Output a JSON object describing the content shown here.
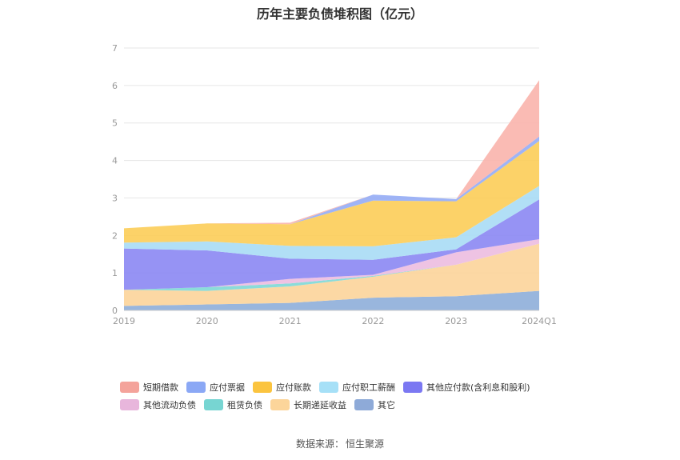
{
  "chart_data": {
    "type": "area",
    "stacked": true,
    "title": "历年主要负债堆积图（亿元）",
    "categories": [
      "2019",
      "2020",
      "2021",
      "2022",
      "2023",
      "2024Q1"
    ],
    "ylim": [
      0,
      7
    ],
    "yticks": [
      "0",
      "1",
      "2",
      "3",
      "4",
      "5",
      "6",
      "7"
    ],
    "grid": true,
    "legend_position": "bottom",
    "series": [
      {
        "name": "其它",
        "color": "#8eaed9",
        "values": [
          0.12,
          0.16,
          0.2,
          0.34,
          0.38,
          0.52
        ]
      },
      {
        "name": "长期递延收益",
        "color": "#fcd49a",
        "values": [
          0.43,
          0.36,
          0.44,
          0.56,
          0.84,
          1.26
        ]
      },
      {
        "name": "租赁负债",
        "color": "#7ed8d6",
        "values": [
          0.0,
          0.1,
          0.08,
          0.02,
          0.0,
          0.0
        ]
      },
      {
        "name": "其他流动负债",
        "color": "#ecbde0",
        "values": [
          0.0,
          0.0,
          0.12,
          0.03,
          0.33,
          0.12
        ]
      },
      {
        "name": "其他应付款(含利息和股利)",
        "color": "#8b87f3",
        "values": [
          1.1,
          0.98,
          0.54,
          0.4,
          0.08,
          1.06
        ]
      },
      {
        "name": "应付职工薪酬",
        "color": "#a8dcf5",
        "values": [
          0.16,
          0.24,
          0.34,
          0.36,
          0.32,
          0.36
        ]
      },
      {
        "name": "应付账款",
        "color": "#fccd58",
        "values": [
          0.38,
          0.48,
          0.58,
          1.22,
          0.96,
          1.2
        ]
      },
      {
        "name": "应付票据",
        "color": "#95acf5",
        "values": [
          0.0,
          0.0,
          0.0,
          0.16,
          0.06,
          0.12
        ]
      },
      {
        "name": "短期借款",
        "color": "#f9b4ac",
        "values": [
          0.0,
          0.0,
          0.04,
          0.0,
          0.0,
          1.5
        ]
      }
    ]
  },
  "legend": {
    "row1": [
      {
        "label": "短期借款",
        "color": "#f4a39b"
      },
      {
        "label": "应付票据",
        "color": "#8ba8f5"
      },
      {
        "label": "应付账款",
        "color": "#fbc43f"
      },
      {
        "label": "应付职工薪酬",
        "color": "#a6e0f7"
      },
      {
        "label": "其他应付款(含利息和股利)",
        "color": "#7b78f2"
      }
    ],
    "row2": [
      {
        "label": "其他流动负债",
        "color": "#e8b6dc"
      },
      {
        "label": "租赁负债",
        "color": "#77d5d2"
      },
      {
        "label": "长期递延收益",
        "color": "#fcd59a"
      },
      {
        "label": "其它",
        "color": "#8eaad8"
      }
    ]
  },
  "source": {
    "label": "数据来源：",
    "value": "恒生聚源"
  }
}
